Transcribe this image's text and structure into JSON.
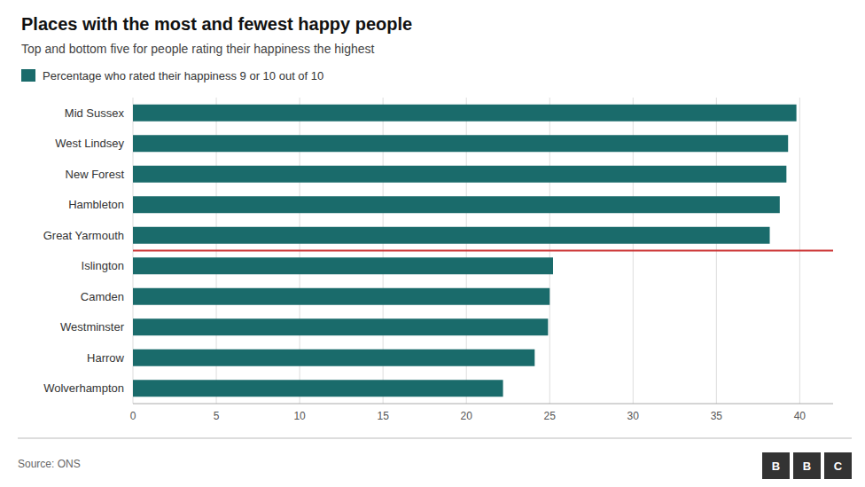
{
  "chart_data": {
    "type": "bar",
    "orientation": "horizontal",
    "title": "Places with the most and fewest happy people",
    "subtitle": "Top and bottom five for people rating their happiness the highest",
    "source": "Source: ONS",
    "annotations": [
      "BBC"
    ],
    "categories": [
      "Mid Sussex",
      "West Lindsey",
      "New Forest",
      "Hambleton",
      "Great Yarmouth",
      "Islington",
      "Camden",
      "Westminster",
      "Harrow",
      "Wolverhampton"
    ],
    "series": [
      {
        "name": "Percentage who rated their happiness 9 or 10 out of 10",
        "color": "#1a6b6b",
        "values": [
          39.8,
          39.3,
          39.2,
          38.8,
          38.2,
          25.2,
          25.0,
          24.9,
          24.1,
          22.2
        ]
      }
    ],
    "xlim": [
      0,
      42
    ],
    "xticks": [
      0,
      5,
      10,
      15,
      20,
      25,
      30,
      35,
      40
    ],
    "grid": true
  }
}
